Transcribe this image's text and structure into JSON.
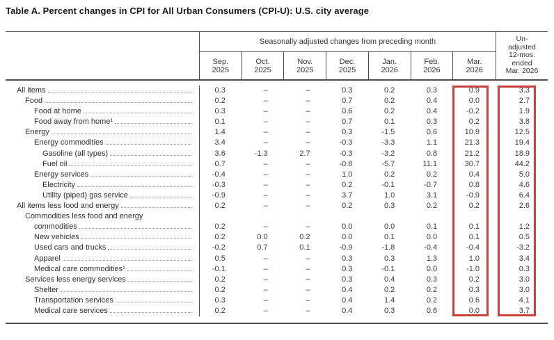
{
  "title": "Table A. Percent changes in CPI for All Urban Consumers (CPI-U): U.S. city average",
  "table": {
    "group_header": "Seasonally adjusted changes from preceding month",
    "month_columns": [
      {
        "l1": "Sep.",
        "l2": "2025"
      },
      {
        "l1": "Oct.",
        "l2": "2025"
      },
      {
        "l1": "Nov.",
        "l2": "2025"
      },
      {
        "l1": "Dec.",
        "l2": "2025"
      },
      {
        "l1": "Jan.",
        "l2": "2026"
      },
      {
        "l1": "Feb.",
        "l2": "2026"
      },
      {
        "l1": "Mar.",
        "l2": "2026"
      }
    ],
    "unadjusted_lines": [
      "Un-",
      "adjusted",
      "12-mos.",
      "ended",
      "Mar. 2026"
    ],
    "highlight_color": "#c9423d",
    "rows": [
      {
        "label": "All items",
        "indent": 0,
        "values": [
          "0.3",
          "–",
          "–",
          "0.3",
          "0.2",
          "0.3",
          "0.9"
        ],
        "yr": "3.3"
      },
      {
        "label": "Food",
        "indent": 1,
        "values": [
          "0.2",
          "–",
          "–",
          "0.7",
          "0.2",
          "0.4",
          "0.0"
        ],
        "yr": "2.7"
      },
      {
        "label": "Food at home",
        "indent": 2,
        "values": [
          "0.3",
          "–",
          "–",
          "0.6",
          "0.2",
          "0.4",
          "-0.2"
        ],
        "yr": "1.9"
      },
      {
        "label": "Food away from home¹",
        "indent": 2,
        "values": [
          "0.1",
          "–",
          "–",
          "0.7",
          "0.1",
          "0.3",
          "0.2"
        ],
        "yr": "3.8"
      },
      {
        "label": "Energy",
        "indent": 1,
        "values": [
          "1.4",
          "–",
          "–",
          "0.3",
          "-1.5",
          "0.6",
          "10.9"
        ],
        "yr": "12.5"
      },
      {
        "label": "Energy commodities",
        "indent": 2,
        "values": [
          "3.4",
          "–",
          "–",
          "-0.3",
          "-3.3",
          "1.1",
          "21.3"
        ],
        "yr": "19.4"
      },
      {
        "label": "Gasoline (all types)",
        "indent": 3,
        "values": [
          "3.6",
          "-1.3",
          "2.7",
          "-0.3",
          "-3.2",
          "0.8",
          "21.2"
        ],
        "yr": "18.9"
      },
      {
        "label": "Fuel oil",
        "indent": 3,
        "values": [
          "0.7",
          "–",
          "–",
          "-0.8",
          "-5.7",
          "11.1",
          "30.7"
        ],
        "yr": "44.2"
      },
      {
        "label": "Energy services",
        "indent": 2,
        "values": [
          "-0.4",
          "–",
          "–",
          "1.0",
          "0.2",
          "0.2",
          "0.4"
        ],
        "yr": "5.0"
      },
      {
        "label": "Electricity",
        "indent": 3,
        "values": [
          "-0.3",
          "–",
          "–",
          "0.2",
          "-0.1",
          "-0.7",
          "0.8"
        ],
        "yr": "4.6"
      },
      {
        "label": "Utility (piped) gas service",
        "indent": 3,
        "values": [
          "-0.9",
          "–",
          "–",
          "3.7",
          "1.0",
          "3.1",
          "-0.9"
        ],
        "yr": "6.4"
      },
      {
        "label": "All items less food and energy",
        "indent": 0,
        "values": [
          "0.2",
          "–",
          "–",
          "0.2",
          "0.3",
          "0.2",
          "0.2"
        ],
        "yr": "2.6"
      },
      {
        "label": "Commodities less food and energy",
        "label2": "commodities",
        "indent": 1,
        "indent2": 2,
        "values": [
          "0.2",
          "–",
          "–",
          "0.0",
          "0.0",
          "0.1",
          "0.1"
        ],
        "yr": "1.2"
      },
      {
        "label": "New vehicles",
        "indent": 2,
        "values": [
          "0.2",
          "0.0",
          "0.2",
          "0.0",
          "0.1",
          "0.0",
          "0.1"
        ],
        "yr": "0.5"
      },
      {
        "label": "Used cars and trucks",
        "indent": 2,
        "values": [
          "-0.2",
          "0.7",
          "0.1",
          "-0.9",
          "-1.8",
          "-0.4",
          "-0.4"
        ],
        "yr": "-3.2"
      },
      {
        "label": "Apparel",
        "indent": 2,
        "values": [
          "0.5",
          "–",
          "–",
          "0.3",
          "0.3",
          "1.3",
          "1.0"
        ],
        "yr": "3.4"
      },
      {
        "label": "Medical care commodities¹",
        "indent": 2,
        "values": [
          "-0.1",
          "–",
          "–",
          "0.3",
          "-0.1",
          "0.0",
          "-1.0"
        ],
        "yr": "0.3"
      },
      {
        "label": "Services less energy services",
        "indent": 1,
        "values": [
          "0.2",
          "–",
          "–",
          "0.3",
          "0.4",
          "0.3",
          "0.2"
        ],
        "yr": "3.0"
      },
      {
        "label": "Shelter",
        "indent": 2,
        "values": [
          "0.2",
          "–",
          "–",
          "0.4",
          "0.2",
          "0.2",
          "0.3"
        ],
        "yr": "3.0"
      },
      {
        "label": "Transportation services",
        "indent": 2,
        "values": [
          "0.3",
          "–",
          "–",
          "0.4",
          "1.4",
          "0.2",
          "0.6"
        ],
        "yr": "4.1"
      },
      {
        "label": "Medical care services",
        "indent": 2,
        "values": [
          "0.2",
          "–",
          "–",
          "0.4",
          "0.3",
          "0.6",
          "0.0"
        ],
        "yr": "3.7"
      }
    ]
  }
}
